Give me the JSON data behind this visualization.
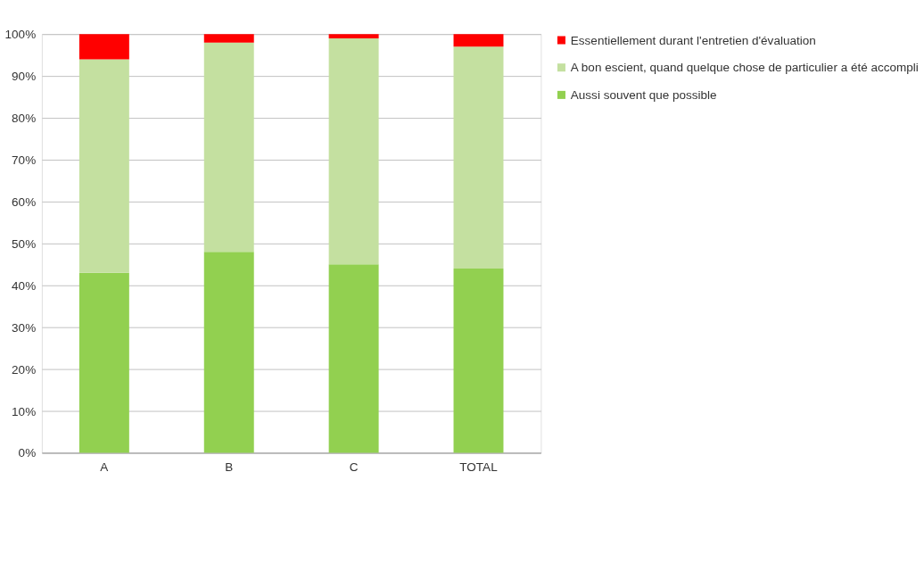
{
  "chart_data": {
    "type": "bar",
    "stacked": true,
    "categories": [
      "A",
      "B",
      "C",
      "TOTAL"
    ],
    "series": [
      {
        "name": "Aussi souvent que possible",
        "color": "#92d050",
        "values": [
          43,
          48,
          45,
          44
        ]
      },
      {
        "name": "A bon escient, quand quelque chose de particulier a été accompli",
        "color": "#c4e0a0",
        "values": [
          51,
          50,
          54,
          53
        ]
      },
      {
        "name": "Essentiellement durant l'entretien d'évaluation",
        "color": "#ff0000",
        "values": [
          6,
          2,
          1,
          3
        ]
      }
    ],
    "ylim": [
      0,
      100
    ],
    "yticks": [
      {
        "value": 0,
        "label": "0%"
      },
      {
        "value": 10,
        "label": "10%"
      },
      {
        "value": 20,
        "label": "20%"
      },
      {
        "value": 30,
        "label": "30%"
      },
      {
        "value": 40,
        "label": "40%"
      },
      {
        "value": 50,
        "label": "50%"
      },
      {
        "value": 60,
        "label": "60%"
      },
      {
        "value": 70,
        "label": "70%"
      },
      {
        "value": 80,
        "label": "80%"
      },
      {
        "value": 90,
        "label": "90%"
      },
      {
        "value": 100,
        "label": "100%"
      }
    ],
    "grid": "y",
    "legend": "right"
  }
}
